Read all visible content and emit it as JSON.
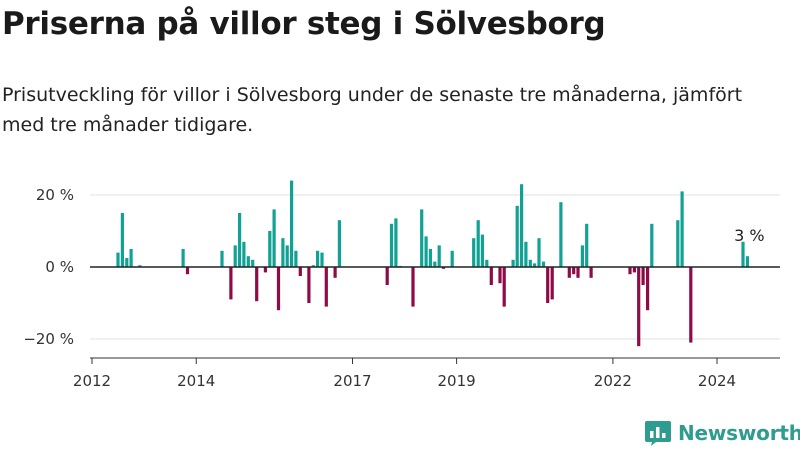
{
  "header": {
    "title": "Priserna på villor steg i Sölvesborg",
    "subtitle": "Prisutveckling för villor i Sölvesborg under de senaste tre månaderna, jämfört med tre månader tidigare."
  },
  "brand": {
    "name": "Newsworthy",
    "color": "#2e9c8f"
  },
  "colors": {
    "positive": "#12a195",
    "negative": "#8e0b47",
    "grid": "#e2e2e2",
    "zero": "#222222"
  },
  "chart_data": {
    "type": "bar",
    "title": "",
    "xlabel": "",
    "ylabel": "",
    "ylim": [
      -25,
      25
    ],
    "xlim": [
      "2012-01-01",
      "2025-06-01"
    ],
    "y_ticks": [
      {
        "value": 20,
        "label": "20 %"
      },
      {
        "value": 0,
        "label": "0 %"
      },
      {
        "value": -20,
        "label": "−20 %"
      }
    ],
    "x_ticks": [
      {
        "date": "2012-01-01",
        "label": "2012"
      },
      {
        "date": "2014-01-01",
        "label": "2014"
      },
      {
        "date": "2017-01-01",
        "label": "2017"
      },
      {
        "date": "2019-01-01",
        "label": "2019"
      },
      {
        "date": "2022-01-01",
        "label": "2022"
      },
      {
        "date": "2024-01-01",
        "label": "2024"
      }
    ],
    "grid": true,
    "annotations": [
      {
        "date": "2024-08-01",
        "value": 3,
        "label": "3 %"
      }
    ],
    "series": [
      {
        "x": [
          "2012-07",
          "2012-08",
          "2012-09",
          "2012-10",
          "2012-12",
          "2013-10",
          "2013-11",
          "2014-07",
          "2014-09",
          "2014-10",
          "2014-11",
          "2014-12",
          "2015-01",
          "2015-02",
          "2015-03",
          "2015-05",
          "2015-06",
          "2015-07",
          "2015-08",
          "2015-09",
          "2015-10",
          "2015-11",
          "2015-12",
          "2016-01",
          "2016-03",
          "2016-04",
          "2016-05",
          "2016-06",
          "2016-07",
          "2016-09",
          "2016-10",
          "2017-09",
          "2017-10",
          "2017-11",
          "2017-12",
          "2018-03",
          "2018-05",
          "2018-06",
          "2018-07",
          "2018-08",
          "2018-09",
          "2018-10",
          "2018-12",
          "2019-05",
          "2019-06",
          "2019-07",
          "2019-08",
          "2019-09",
          "2019-11",
          "2019-12",
          "2020-02",
          "2020-03",
          "2020-04",
          "2020-05",
          "2020-06",
          "2020-07",
          "2020-08",
          "2020-09",
          "2020-10",
          "2020-11",
          "2021-01",
          "2021-03",
          "2021-04",
          "2021-05",
          "2021-06",
          "2021-07",
          "2021-08",
          "2022-05",
          "2022-06",
          "2022-07",
          "2022-08",
          "2022-09",
          "2022-10",
          "2023-04",
          "2023-05",
          "2023-07",
          "2024-07",
          "2024-08"
        ],
        "values": [
          4,
          15,
          2.5,
          5,
          0.5,
          5,
          -2,
          4.5,
          -9,
          6,
          15,
          7,
          3,
          2,
          -9.5,
          -1.5,
          10,
          16,
          -12,
          8,
          6,
          24,
          4.5,
          -2.5,
          -10,
          0.5,
          4.5,
          4,
          -11,
          -3,
          13,
          -5,
          12,
          13.5,
          0.3,
          -11,
          16,
          8.5,
          5,
          1.5,
          6,
          -0.5,
          4.5,
          8,
          13,
          9,
          2,
          -5,
          -4.5,
          -11,
          2,
          17,
          23,
          7,
          2,
          1,
          8,
          1.5,
          -10,
          -9,
          18,
          -3,
          -2,
          -3,
          6,
          12,
          -3,
          -2,
          -1.5,
          -22,
          -5,
          -12,
          12,
          13,
          21,
          -21,
          7,
          3
        ]
      }
    ]
  }
}
